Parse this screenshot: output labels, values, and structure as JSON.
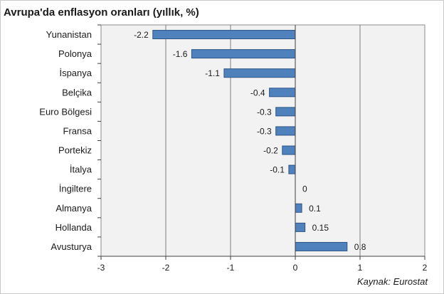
{
  "title": "Avrupa'da enflasyon oranları (yıllık, %)",
  "source": "Kaynak: Eurostat",
  "colors": {
    "bar_fill": "#4f81bd",
    "bar_stroke": "#2c5587",
    "plot_bg": "#f2f2f2",
    "grid": "#7f7f7f"
  },
  "chart_data": {
    "type": "bar",
    "orientation": "horizontal",
    "title": "Avrupa'da enflasyon oranları (yıllık, %)",
    "xlabel": "",
    "ylabel": "",
    "xlim": [
      -3,
      2
    ],
    "xticks": [
      "-3",
      "-2",
      "-1",
      "0",
      "1",
      "2"
    ],
    "grid": true,
    "legend": "none",
    "categories": [
      "Yunanistan",
      "Polonya",
      "İspanya",
      "Belçika",
      "Euro Bölgesi",
      "Fransa",
      "Portekiz",
      "İtalya",
      "İngiltere",
      "Almanya",
      "Hollanda",
      "Avusturya"
    ],
    "values": [
      -2.2,
      -1.6,
      -1.1,
      -0.4,
      -0.3,
      -0.3,
      -0.2,
      -0.1,
      0,
      0.1,
      0.15,
      0.8
    ],
    "value_labels": [
      "-2.2",
      "-1.6",
      "-1.1",
      "-0.4",
      "-0.3",
      "-0.3",
      "-0.2",
      "-0.1",
      "0",
      "0.1",
      "0.15",
      "0.8"
    ]
  }
}
